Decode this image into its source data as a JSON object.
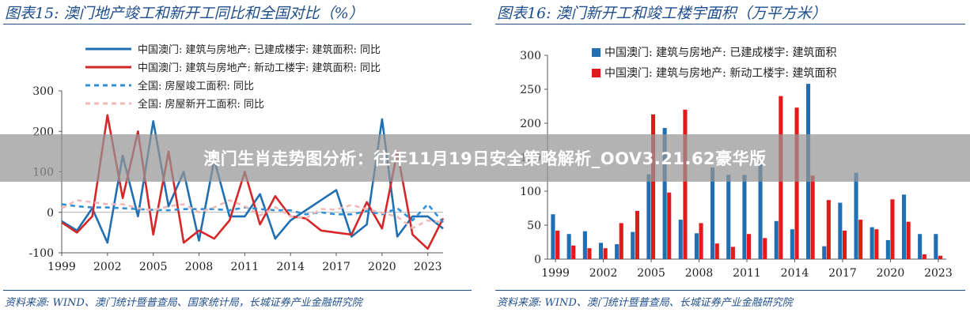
{
  "overlay_title": "澳门生肖走势图分析：往年11月19日安全策略解析_OOV3.21.62豪华版",
  "chart_data": [
    {
      "type": "line",
      "title": "图表15:  澳门地产竣工和新开工同比和全国对比（%）",
      "source": "资料来源:  WIND、澳门统计暨普查局、国家统计局，长城证券产业金融研究院",
      "ylim": [
        -100,
        300
      ],
      "yticks": [
        -100,
        0,
        100,
        200,
        300
      ],
      "xlim": [
        1999,
        2024
      ],
      "xticks": [
        1999,
        2002,
        2005,
        2008,
        2011,
        2014,
        2017,
        2020,
        2023
      ],
      "legend_position": "top",
      "series": [
        {
          "name": "中国澳门: 建筑与房地产: 已建成楼宇: 建筑面积: 同比",
          "color": "#1f6fb2",
          "dash": "solid",
          "x": [
            1999,
            2000,
            2001,
            2002,
            2003,
            2004,
            2005,
            2006,
            2007,
            2008,
            2009,
            2010,
            2011,
            2012,
            2013,
            2014,
            2017,
            2018,
            2019,
            2020,
            2021,
            2022,
            2023,
            2024
          ],
          "y": [
            -22,
            -45,
            10,
            -75,
            140,
            -10,
            225,
            15,
            100,
            -70,
            130,
            -10,
            -10,
            45,
            -65,
            -20,
            55,
            -60,
            -30,
            230,
            -60,
            -10,
            -10,
            -40
          ]
        },
        {
          "name": "中国澳门: 建筑与房地产: 新动工楼宇: 建筑面积: 同比",
          "color": "#d62728",
          "dash": "solid",
          "x": [
            1999,
            2000,
            2001,
            2002,
            2003,
            2004,
            2005,
            2006,
            2007,
            2008,
            2009,
            2010,
            2011,
            2012,
            2013,
            2014,
            2015,
            2016,
            2017,
            2018,
            2019,
            2020,
            2021,
            2022,
            2023,
            2024
          ],
          "y": [
            -25,
            -50,
            -10,
            240,
            35,
            200,
            -55,
            150,
            -75,
            -45,
            -65,
            -20,
            100,
            -30,
            40,
            -10,
            -15,
            -45,
            -50,
            -55,
            25,
            -40,
            150,
            -55,
            -90,
            -15
          ]
        },
        {
          "name": "全国: 房屋竣工面积: 同比",
          "color": "#2f8fd8",
          "dash": "6,5",
          "x": [
            1999,
            2000,
            2001,
            2002,
            2003,
            2004,
            2005,
            2006,
            2007,
            2008,
            2009,
            2010,
            2011,
            2012,
            2013,
            2014,
            2015,
            2016,
            2017,
            2018,
            2019,
            2020,
            2021,
            2022,
            2023,
            2024
          ],
          "y": [
            20,
            15,
            12,
            12,
            10,
            8,
            6,
            5,
            8,
            8,
            8,
            5,
            12,
            8,
            5,
            5,
            -5,
            0,
            -5,
            -5,
            3,
            -5,
            10,
            -20,
            20,
            -25
          ]
        },
        {
          "name": "全国: 房屋新开工面积: 同比",
          "color": "#f2b8b8",
          "dash": "6,5",
          "x": [
            1999,
            2000,
            2001,
            2002,
            2003,
            2004,
            2005,
            2006,
            2007,
            2008,
            2009,
            2010,
            2011,
            2012,
            2013,
            2014,
            2015,
            2016,
            2017,
            2018,
            2019,
            2020,
            2021,
            2022,
            2023,
            2024
          ],
          "y": [
            10,
            30,
            25,
            20,
            20,
            10,
            5,
            15,
            20,
            0,
            12,
            30,
            15,
            -8,
            13,
            -10,
            -15,
            8,
            7,
            18,
            8,
            -1,
            -11,
            -39,
            -20,
            -25
          ]
        }
      ]
    },
    {
      "type": "bar",
      "title": "图表16:  澳门新开工和竣工楼宇面积（万平方米）",
      "source": "资料来源:  WIND、澳门统计暨普查局、长城证券产业金融研究院",
      "ylim": [
        0,
        300
      ],
      "yticks": [
        0,
        50,
        100,
        150,
        200,
        250,
        300
      ],
      "xticks": [
        "1999",
        "2002",
        "2005",
        "2008",
        "2011",
        "2014",
        "2017",
        "2020",
        "2023"
      ],
      "legend_position": "top",
      "categories": [
        "1999",
        "2000",
        "2001",
        "2002",
        "2003",
        "2004",
        "2005",
        "2006",
        "2007",
        "2008",
        "2009",
        "2010",
        "2011",
        "2012",
        "2013",
        "2014",
        "2015",
        "2016",
        "2017",
        "2018",
        "2019",
        "2020",
        "2021",
        "2022",
        "2023"
      ],
      "series": [
        {
          "name": "中国澳门: 建筑与房地产: 已建成楼宇: 建筑面积",
          "color": "#1f6fb2",
          "values": [
            66,
            37,
            41,
            24,
            22,
            40,
            125,
            193,
            58,
            38,
            135,
            124,
            124,
            142,
            56,
            44,
            258,
            19,
            83,
            127,
            47,
            28,
            95,
            37,
            37
          ]
        },
        {
          "name": "中国澳门: 建筑与房地产: 新动工楼宇: 建筑面积",
          "color": "#e31a1c",
          "values": [
            42,
            20,
            16,
            16,
            53,
            71,
            213,
            98,
            220,
            53,
            23,
            18,
            37,
            31,
            240,
            223,
            123,
            87,
            42,
            58,
            44,
            88,
            55,
            7,
            5
          ]
        }
      ]
    }
  ]
}
